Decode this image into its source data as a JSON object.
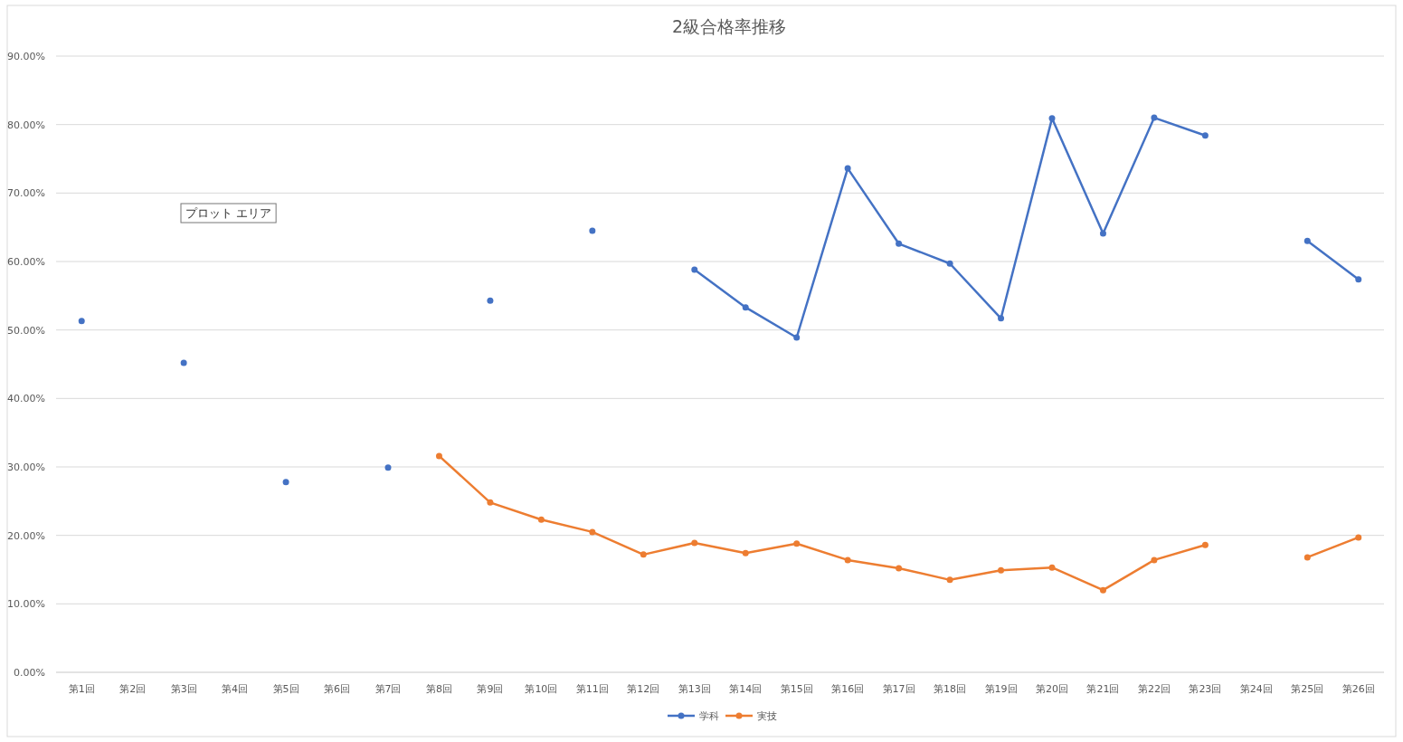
{
  "chart_data": {
    "type": "line",
    "title": "2級合格率推移",
    "categories": [
      "第1回",
      "第2回",
      "第3回",
      "第4回",
      "第5回",
      "第6回",
      "第7回",
      "第8回",
      "第9回",
      "第10回",
      "第11回",
      "第12回",
      "第13回",
      "第14回",
      "第15回",
      "第16回",
      "第17回",
      "第18回",
      "第19回",
      "第20回",
      "第21回",
      "第22回",
      "第23回",
      "第24回",
      "第25回",
      "第26回"
    ],
    "series": [
      {
        "name": "学科",
        "color": "#4472c4",
        "values": [
          51.3,
          null,
          45.2,
          null,
          27.8,
          null,
          29.9,
          null,
          54.3,
          null,
          64.5,
          null,
          58.8,
          53.3,
          48.9,
          73.6,
          62.6,
          59.7,
          51.7,
          80.9,
          64.1,
          81.0,
          78.4,
          null,
          63.0,
          57.4
        ]
      },
      {
        "name": "実技",
        "color": "#ed7d31",
        "values": [
          null,
          null,
          null,
          null,
          null,
          null,
          null,
          31.6,
          24.8,
          22.3,
          20.5,
          17.2,
          18.9,
          17.4,
          18.8,
          16.4,
          15.2,
          13.5,
          14.9,
          15.3,
          12.0,
          16.4,
          18.6,
          null,
          16.8,
          19.7
        ]
      }
    ],
    "ylim": [
      0,
      90
    ],
    "yticks": [
      {
        "value": 0,
        "label": "0.00%"
      },
      {
        "value": 10,
        "label": "10.00%"
      },
      {
        "value": 20,
        "label": "20.00%"
      },
      {
        "value": 30,
        "label": "30.00%"
      },
      {
        "value": 40,
        "label": "40.00%"
      },
      {
        "value": 50,
        "label": "50.00%"
      },
      {
        "value": 60,
        "label": "60.00%"
      },
      {
        "value": 70,
        "label": "70.00%"
      },
      {
        "value": 80,
        "label": "80.00%"
      },
      {
        "value": 90,
        "label": "90.00%"
      }
    ],
    "grid": "y",
    "legend": "bottom",
    "marker": "circle",
    "line_style": "solid",
    "annotations": [
      "プロット エリア"
    ]
  }
}
